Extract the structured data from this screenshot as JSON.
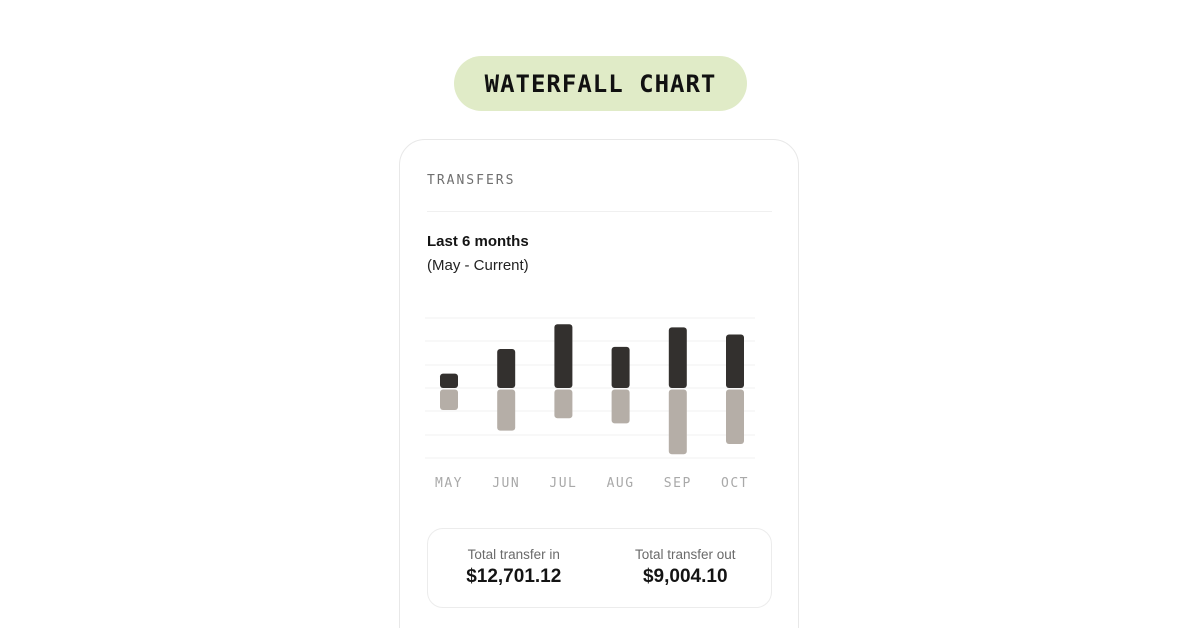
{
  "header": {
    "pill_label": "WATERFALL CHART"
  },
  "card": {
    "title": "TRANSFERS",
    "period_title": "Last 6 months",
    "period_sub": "(May - Current)"
  },
  "totals": {
    "in_label": "Total transfer in",
    "in_value": "$12,701.12",
    "out_label": "Total transfer out",
    "out_value": "$9,004.10"
  },
  "colors": {
    "pill_bg": "#e0ebc7",
    "bar_in": "#33302e",
    "bar_out": "#b5aea7"
  },
  "chart_data": {
    "type": "bar",
    "categories": [
      "MAY",
      "JUN",
      "JUL",
      "AUG",
      "SEP",
      "OCT"
    ],
    "series": [
      {
        "values": [
          14,
          38,
          62,
          40,
          59,
          52
        ]
      },
      {
        "values": [
          -20,
          -40,
          -28,
          -33,
          -63,
          -53
        ]
      }
    ],
    "ylim": [
      -72,
      72
    ],
    "grid": true,
    "legend": "none"
  }
}
